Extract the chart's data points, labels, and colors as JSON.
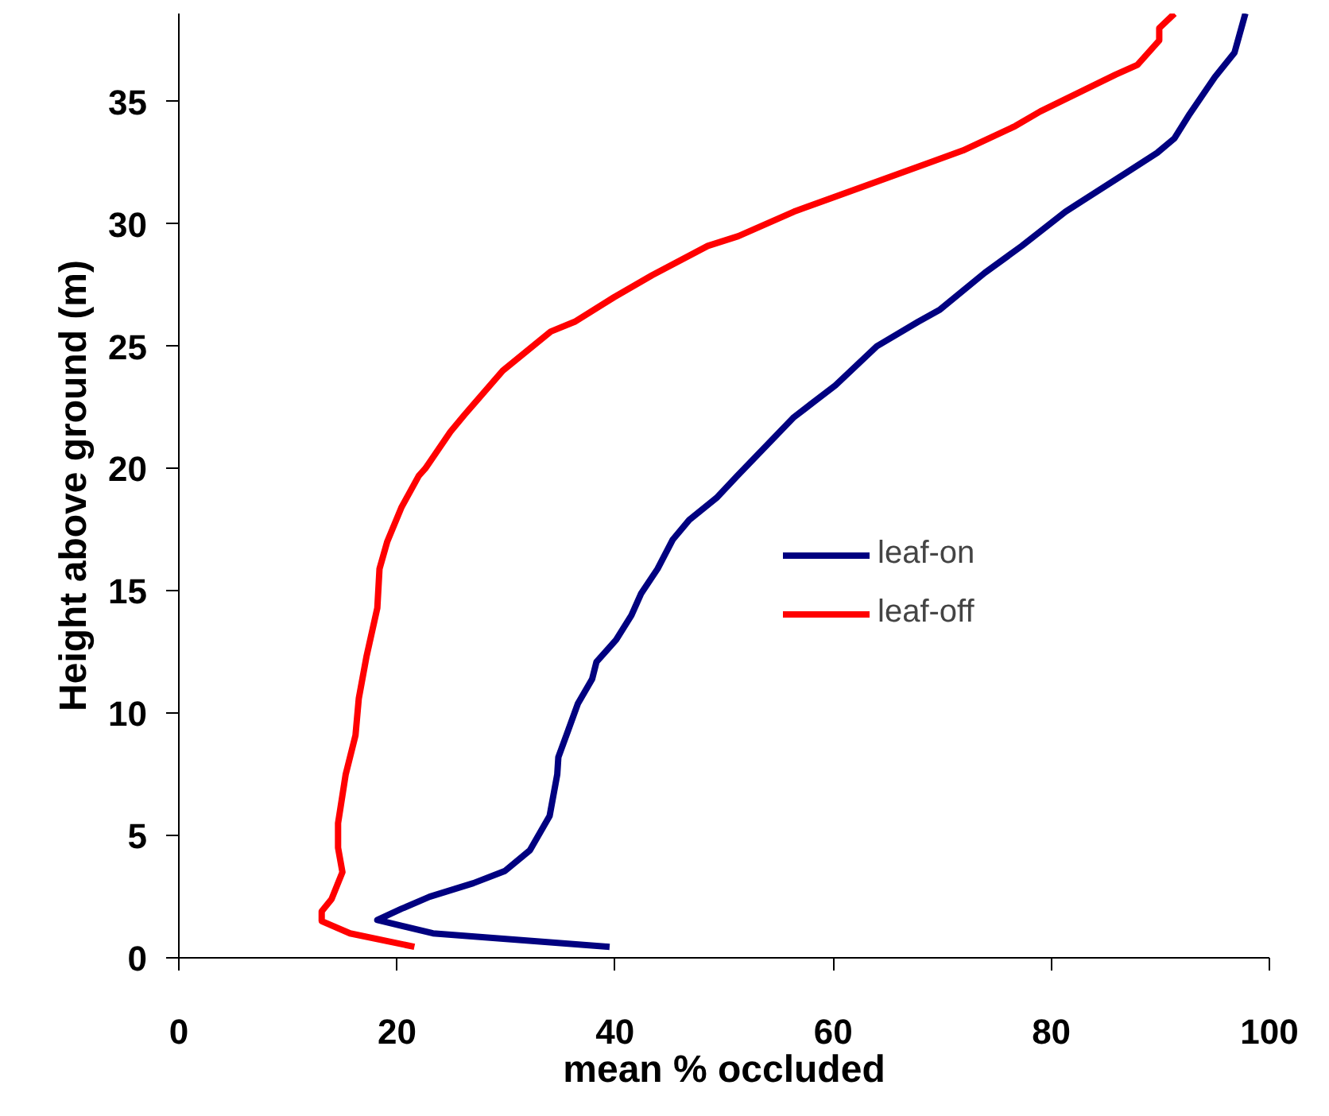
{
  "chart_data": {
    "type": "line",
    "xlabel": "mean % occluded",
    "ylabel": "Height above ground (m)",
    "xlim": [
      0,
      100
    ],
    "xticks": [
      0,
      20,
      40,
      60,
      80,
      100
    ],
    "ylim": [
      0,
      38.6
    ],
    "yticks": [
      0,
      5,
      10,
      15,
      20,
      25,
      30,
      35
    ],
    "grid": false,
    "legend": "right",
    "marker": "none",
    "line_style": "solid",
    "series": [
      {
        "name": "leaf-on",
        "color": "#000080",
        "x": [
          39.5,
          23.3,
          18.2,
          20.4,
          23.0,
          27.0,
          29.9,
          32.2,
          34.0,
          34.7,
          34.8,
          35.7,
          36.6,
          37.9,
          38.3,
          40.1,
          41.5,
          42.4,
          43.9,
          45.3,
          46.8,
          49.3,
          51.2,
          56.4,
          60.2,
          64.0,
          67.8,
          69.8,
          73.9,
          77.3,
          81.3,
          86.9,
          89.7,
          91.3,
          92.7,
          95.0,
          96.8,
          97.8
        ],
        "values": [
          0.45,
          1.0,
          1.55,
          2.0,
          2.5,
          3.05,
          3.55,
          4.4,
          5.8,
          7.5,
          8.2,
          9.3,
          10.4,
          11.4,
          12.1,
          13.0,
          14.0,
          14.9,
          15.9,
          17.1,
          17.9,
          18.8,
          19.7,
          22.1,
          23.4,
          25.0,
          26.0,
          26.5,
          28.0,
          29.1,
          30.5,
          32.1,
          32.9,
          33.5,
          34.5,
          36.0,
          37.0,
          38.6
        ]
      },
      {
        "name": "leaf-off",
        "color": "#ff0000",
        "x": [
          21.6,
          15.7,
          13.1,
          13.1,
          14.0,
          15.0,
          14.6,
          14.6,
          15.3,
          16.2,
          16.5,
          17.2,
          18.2,
          18.4,
          19.1,
          20.4,
          22.0,
          22.6,
          24.9,
          26.2,
          29.7,
          34.1,
          36.3,
          39.9,
          43.4,
          48.5,
          51.3,
          56.4,
          68.8,
          71.9,
          76.7,
          79.0,
          85.9,
          87.9,
          89.9,
          89.9,
          91.3
        ],
        "values": [
          0.45,
          1.0,
          1.5,
          1.9,
          2.4,
          3.5,
          4.5,
          5.5,
          7.5,
          9.1,
          10.6,
          12.3,
          14.3,
          15.9,
          17.0,
          18.4,
          19.7,
          20.0,
          21.5,
          22.2,
          24.0,
          25.6,
          26.0,
          27.0,
          27.9,
          29.1,
          29.5,
          30.5,
          32.5,
          33.0,
          34.0,
          34.6,
          36.1,
          36.5,
          37.5,
          38.0,
          38.6
        ]
      }
    ]
  }
}
